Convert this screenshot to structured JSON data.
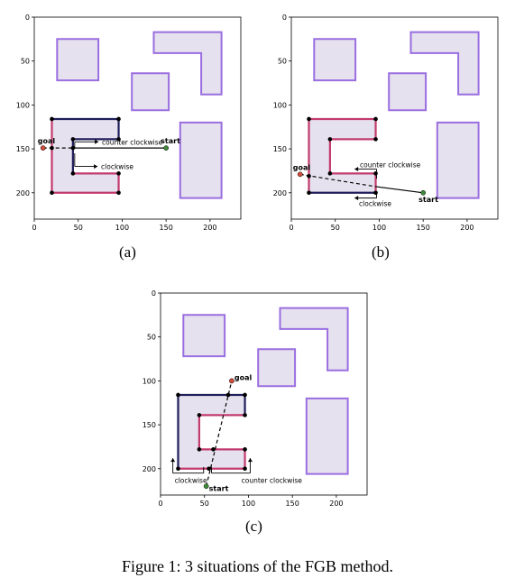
{
  "figure": {
    "caption": "Figure 1: 3 situations of the FGB method.",
    "colors": {
      "obstacle_fill": "#e6e1ee",
      "obstacle_edge": "#9a6ee0",
      "c_edge_dark": "#1f1e5a",
      "c_edge_red": "#c23a6e",
      "vertex": "#000000",
      "goal": "#d24b3a",
      "start": "#3f8a3a"
    },
    "axes": {
      "xlim": [
        0,
        235
      ],
      "ylim_top_to_bottom": [
        0,
        230
      ],
      "xticks": [
        "0",
        "50",
        "100",
        "150",
        "200"
      ],
      "yticks": [
        "0",
        "50",
        "100",
        "150",
        "200"
      ],
      "xtick_values": [
        0,
        50,
        100,
        150,
        200
      ],
      "ytick_values": [
        0,
        50,
        100,
        150,
        200
      ]
    },
    "obstacles": [
      [
        [
          26,
          25
        ],
        [
          73,
          25
        ],
        [
          73,
          72
        ],
        [
          26,
          72
        ]
      ],
      [
        [
          111,
          64
        ],
        [
          153,
          64
        ],
        [
          153,
          106
        ],
        [
          111,
          106
        ]
      ],
      [
        [
          136,
          17
        ],
        [
          213,
          17
        ],
        [
          213,
          88
        ],
        [
          190,
          88
        ],
        [
          190,
          41
        ],
        [
          136,
          41
        ]
      ],
      [
        [
          166,
          120
        ],
        [
          213,
          120
        ],
        [
          213,
          206
        ],
        [
          166,
          206
        ]
      ]
    ],
    "c_shape": [
      [
        20,
        116
      ],
      [
        96,
        116
      ],
      [
        96,
        139
      ],
      [
        44,
        139
      ],
      [
        44,
        178
      ],
      [
        96,
        178
      ],
      [
        96,
        200
      ],
      [
        20,
        200
      ]
    ]
  },
  "panels": [
    {
      "label": "(a)",
      "start": {
        "x": 150,
        "y": 149,
        "text": "start"
      },
      "goal": {
        "x": 10,
        "y": 149,
        "text": "goal"
      },
      "dashed": [
        [
          10,
          149
        ],
        [
          44,
          149
        ]
      ],
      "solid": [
        [
          44,
          149
        ],
        [
          150,
          149
        ]
      ],
      "vertices": [
        [
          20,
          116
        ],
        [
          96,
          116
        ],
        [
          96,
          139
        ],
        [
          44,
          139
        ],
        [
          44,
          178
        ],
        [
          96,
          178
        ],
        [
          96,
          200
        ],
        [
          20,
          200
        ],
        [
          20,
          149
        ],
        [
          44,
          149
        ]
      ],
      "dark_edges": [
        [
          0,
          1
        ],
        [
          1,
          2
        ],
        [
          2,
          3
        ],
        [
          3,
          4
        ]
      ],
      "annotations": [
        {
          "text": "counter clockwise",
          "x": 77,
          "y": 142
        },
        {
          "text": "clockwise",
          "x": 76,
          "y": 170
        }
      ]
    },
    {
      "label": "(b)",
      "start": {
        "x": 150,
        "y": 200,
        "text": "start"
      },
      "goal": {
        "x": 10,
        "y": 179,
        "text": "goal"
      },
      "dashed": [
        [
          10,
          179
        ],
        [
          96,
          193
        ]
      ],
      "solid": [
        [
          96,
          193
        ],
        [
          150,
          200
        ]
      ],
      "vertices": [
        [
          20,
          116
        ],
        [
          96,
          116
        ],
        [
          96,
          139
        ],
        [
          44,
          139
        ],
        [
          44,
          178
        ],
        [
          96,
          178
        ],
        [
          96,
          200
        ],
        [
          20,
          200
        ],
        [
          20,
          181
        ]
      ],
      "dark_edges": [
        [
          6,
          7
        ],
        [
          7,
          8
        ]
      ],
      "annotations": [
        {
          "text": "counter clockwise",
          "x": 78,
          "y": 168
        },
        {
          "text": "clockwise",
          "x": 77,
          "y": 212
        }
      ]
    },
    {
      "label": "(c)",
      "start": {
        "x": 52,
        "y": 220,
        "text": "start"
      },
      "goal": {
        "x": 81,
        "y": 100,
        "text": "goal"
      },
      "dashed": [
        [
          52,
          220
        ],
        [
          81,
          100
        ]
      ],
      "solid": [],
      "vertices": [
        [
          20,
          116
        ],
        [
          96,
          116
        ],
        [
          96,
          139
        ],
        [
          44,
          139
        ],
        [
          44,
          178
        ],
        [
          96,
          178
        ],
        [
          96,
          200
        ],
        [
          20,
          200
        ],
        [
          77,
          116
        ],
        [
          60,
          178
        ],
        [
          55,
          200
        ]
      ],
      "dark_edges": [
        [
          7,
          0
        ],
        [
          0,
          1
        ],
        [
          1,
          2
        ]
      ],
      "annotations": [
        {
          "text": "clockwise",
          "x": 16,
          "y": 213
        },
        {
          "text": "counter clockwise",
          "x": 92,
          "y": 213
        }
      ]
    }
  ]
}
